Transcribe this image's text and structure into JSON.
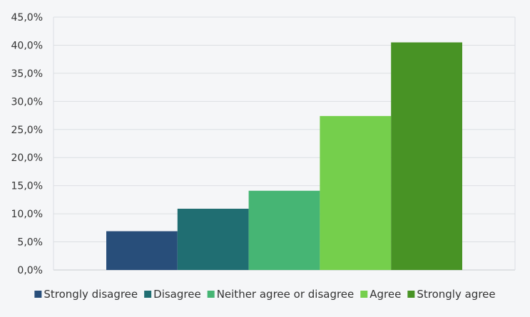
{
  "chart_data": {
    "type": "bar",
    "title": "",
    "xlabel": "",
    "ylabel": "",
    "ylim": [
      0,
      45
    ],
    "y_ticks": [
      "0,0%",
      "5,0%",
      "10,0%",
      "15,0%",
      "20,0%",
      "25,0%",
      "30,0%",
      "35,0%",
      "40,0%",
      "45,0%"
    ],
    "grid": "horizontal",
    "legend_position": "bottom",
    "series": [
      {
        "name": "Strongly disagree",
        "value": 6.9,
        "color": "#284e7a"
      },
      {
        "name": "Disagree",
        "value": 10.9,
        "color": "#206e72"
      },
      {
        "name": "Neither agree or disagree",
        "value": 14.1,
        "color": "#46b574"
      },
      {
        "name": "Agree",
        "value": 27.4,
        "color": "#75cf4c"
      },
      {
        "name": "Strongly agree",
        "value": 40.5,
        "color": "#489325"
      }
    ]
  }
}
